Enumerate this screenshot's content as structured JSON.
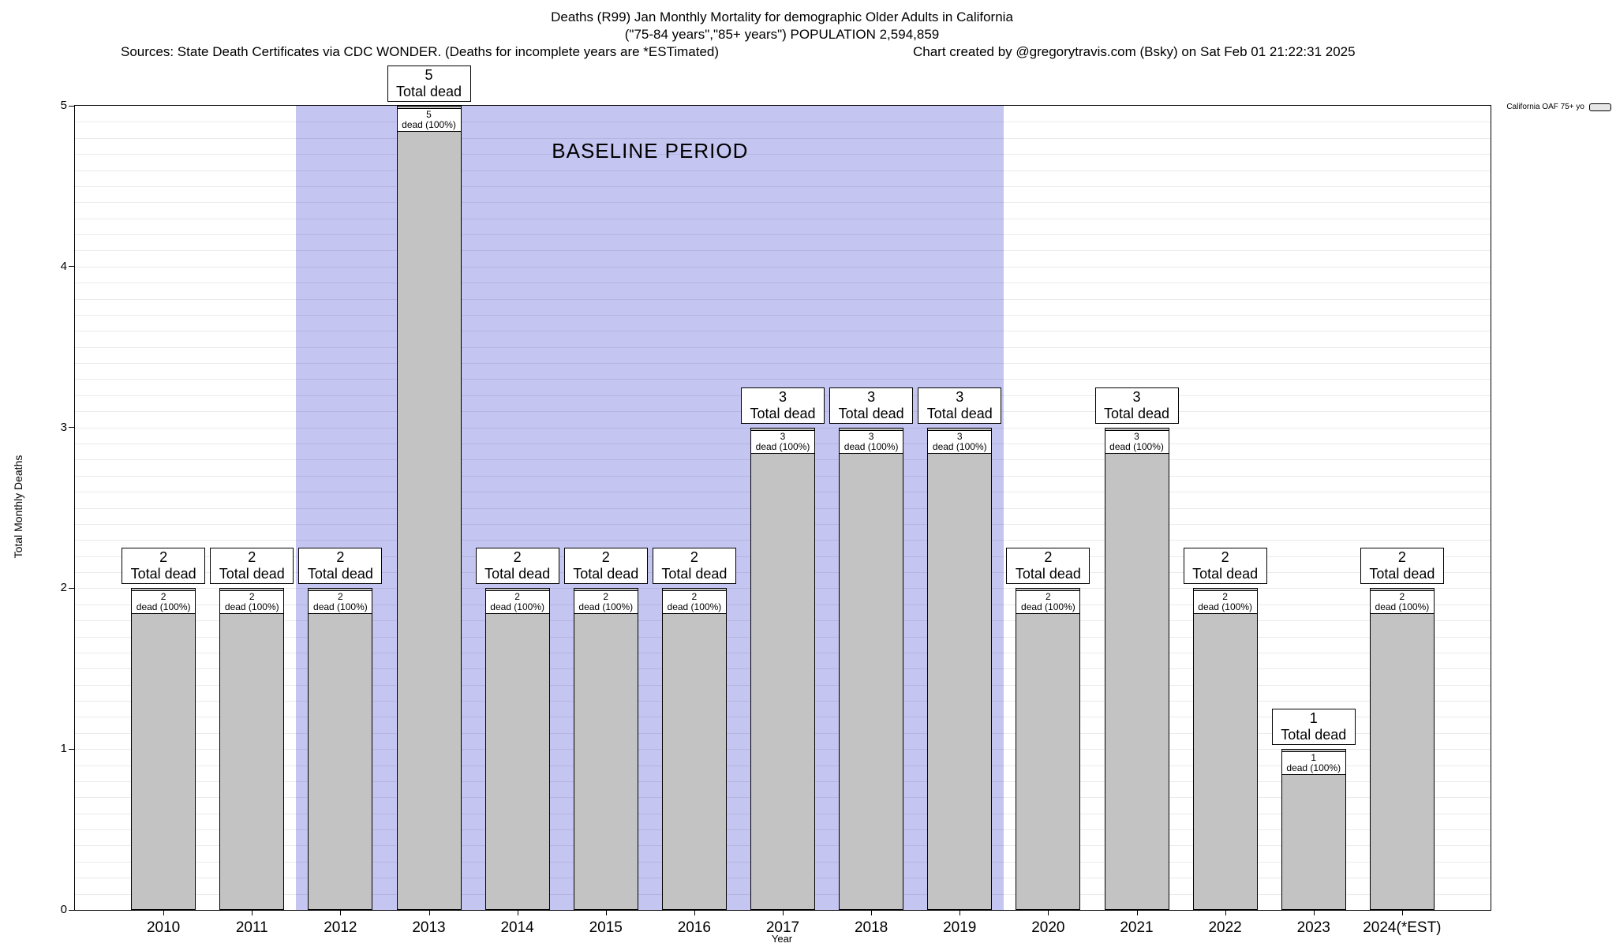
{
  "header": {
    "title_line1": "Deaths (R99) Jan Monthly Mortality for demographic Older Adults in California",
    "title_line2": "(\"75-84 years\",\"85+ years\") POPULATION 2,594,859",
    "sources": "Sources: State Death Certificates via CDC WONDER. (Deaths for incomplete years are *ESTimated)",
    "credit": "Chart created by @gregorytravis.com (Bsky) on Sat Feb 01 21:22:31 2025"
  },
  "legend": {
    "label": "California OAF 75+ yo"
  },
  "chart_data": {
    "type": "bar",
    "title": "Deaths (R99) Jan Monthly Mortality for demographic Older Adults in California",
    "subtitle": "(\"75-84 years\",\"85+ years\") POPULATION 2,594,859",
    "categories": [
      "2010",
      "2011",
      "2012",
      "2013",
      "2014",
      "2015",
      "2016",
      "2017",
      "2018",
      "2019",
      "2020",
      "2021",
      "2022",
      "2023",
      "2024(*EST)"
    ],
    "values": [
      2,
      2,
      2,
      5,
      2,
      2,
      2,
      3,
      3,
      3,
      2,
      3,
      2,
      1,
      2
    ],
    "series": [
      {
        "name": "California OAF 75+ yo",
        "values": [
          2,
          2,
          2,
          5,
          2,
          2,
          2,
          3,
          3,
          3,
          2,
          3,
          2,
          1,
          2
        ]
      }
    ],
    "xlabel": "Year",
    "ylabel": "Total Monthly Deaths",
    "ylim": [
      0,
      5
    ],
    "yticks": [
      0,
      1,
      2,
      3,
      4,
      5
    ],
    "grid": {
      "orientation": "horizontal",
      "minor_step": 0.1
    },
    "legend_position": "top-right",
    "bar_color": "#c3c3c3",
    "bar_top_label_suffix": "Total dead",
    "bar_inner_label_suffix": "dead (100%)",
    "baseline_band": {
      "label": "BASELINE PERIOD",
      "start_category": "2012",
      "end_category": "2019",
      "color": "#c5c5f2"
    }
  }
}
